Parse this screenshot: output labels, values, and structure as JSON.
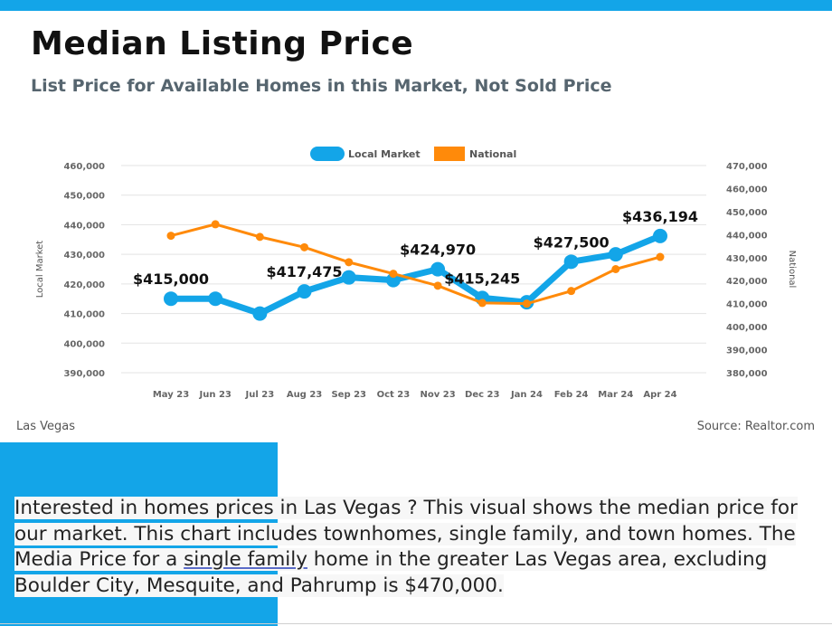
{
  "header": {
    "title": "Median Listing Price",
    "subtitle": "List Price for Available Homes in this Market, Not Sold Price"
  },
  "chart_data": {
    "type": "line",
    "categories": [
      "May 23",
      "Jun 23",
      "Jul 23",
      "Aug 23",
      "Sep 23",
      "Oct 23",
      "Nov 23",
      "Dec 23",
      "Jan 24",
      "Feb 24",
      "Mar 24",
      "Apr 24"
    ],
    "series": [
      {
        "name": "Local Market",
        "axis": "left",
        "color": "#13a5e8",
        "values": [
          415000,
          415000,
          410000,
          417475,
          422200,
          421300,
          424970,
          415245,
          413800,
          427500,
          430000,
          436194
        ]
      },
      {
        "name": "National",
        "axis": "right",
        "color": "#ff8a0a",
        "values": [
          439500,
          444500,
          439000,
          434500,
          428000,
          423000,
          417800,
          410300,
          410000,
          415500,
          425000,
          430300
        ]
      }
    ],
    "data_labels": [
      {
        "index": 0,
        "text": "$415,000"
      },
      {
        "index": 3,
        "text": "$417,475"
      },
      {
        "index": 6,
        "text": "$424,970"
      },
      {
        "index": 7,
        "text": "$415,245"
      },
      {
        "index": 9,
        "text": "$427,500"
      },
      {
        "index": 11,
        "text": "$436,194"
      }
    ],
    "y_left": {
      "label": "Local Market",
      "min": 390000,
      "max": 460000,
      "ticks": [
        "390,000",
        "400,000",
        "410,000",
        "420,000",
        "430,000",
        "440,000",
        "450,000",
        "460,000"
      ]
    },
    "y_right": {
      "label": "National",
      "min": 380000,
      "max": 470000,
      "ticks": [
        "380,000",
        "390,000",
        "400,000",
        "410,000",
        "420,000",
        "430,000",
        "440,000",
        "450,000",
        "460,000",
        "470,000"
      ]
    },
    "legend": "top-center",
    "grid": true
  },
  "footer": {
    "location": "Las Vegas",
    "source": "Source: Realtor.com"
  },
  "description": {
    "part1": "Interested in homes prices in Las Vegas ? This visual shows the median price for our market.   This chart includes townhomes, single family, and town homes.  The Media Price for a ",
    "link": "single family",
    "part2": " home in the greater Las Vegas area, excluding Boulder City, Mesquite, and Pahrump is $470,000."
  }
}
